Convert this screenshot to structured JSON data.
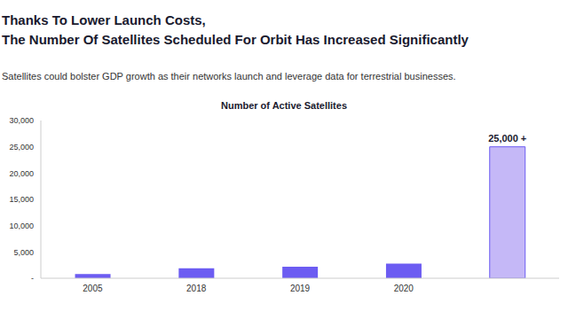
{
  "slide": {
    "heading": [
      "Thanks To Lower Launch Costs,",
      "The Number Of Satellites Scheduled For Orbit Has Increased Significantly"
    ],
    "subtitle": "Satellites could bolster GDP growth as their networks launch and leverage data for terrestrial businesses."
  },
  "chart_data": {
    "type": "bar",
    "title": "Number of Active Satellites",
    "categories": [
      "2005",
      "2018",
      "2019",
      "2020",
      null
    ],
    "values": [
      800,
      1900,
      2200,
      2800,
      25000
    ],
    "value_labels": [
      null,
      null,
      null,
      null,
      "25,000 +"
    ],
    "data_labels": true,
    "colors": [
      "#6c5cf2",
      "#6c5cf2",
      "#6c5cf2",
      "#6c5cf2",
      "#c5b8f7"
    ],
    "ylim": [
      0,
      30000
    ],
    "yticks": [
      {
        "value": 0,
        "label": "-"
      },
      {
        "value": 5000,
        "label": "5,000"
      },
      {
        "value": 10000,
        "label": "10,000"
      },
      {
        "value": 15000,
        "label": "15,000"
      },
      {
        "value": 20000,
        "label": "20,000"
      },
      {
        "value": 25000,
        "label": "25,000"
      },
      {
        "value": 30000,
        "label": "30,000"
      }
    ],
    "grid": false
  }
}
